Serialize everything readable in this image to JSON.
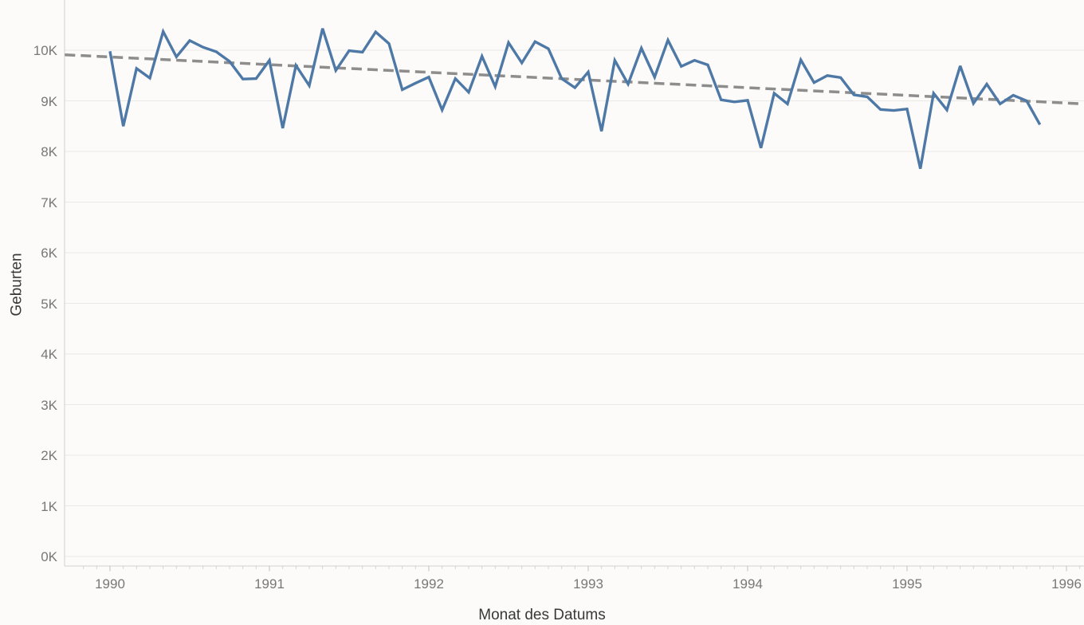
{
  "chart_data": {
    "type": "line",
    "title": "",
    "xlabel": "Monat des Datums",
    "ylabel": "Geburten",
    "x_tick_labels": [
      "1990",
      "1991",
      "1992",
      "1993",
      "1994",
      "1995",
      "1996"
    ],
    "y_tick_labels": [
      "0K",
      "1K",
      "2K",
      "3K",
      "4K",
      "5K",
      "6K",
      "7K",
      "8K",
      "9K",
      "10K"
    ],
    "y_axis": {
      "min": 0,
      "max": 10500,
      "grid_interval_births": 1000
    },
    "x_axis": {
      "start_month": "1990-01",
      "end_month": "1995-11",
      "minor_ticks": "monthly",
      "major_ticks": "yearly"
    },
    "legend": "none",
    "grid": "horizontal-only",
    "series": [
      {
        "name": "Geburten",
        "color": "#4e79a7",
        "start": "1990-01",
        "values": [
          9980,
          8500,
          9640,
          9450,
          10370,
          9870,
          10190,
          10060,
          9970,
          9780,
          9430,
          9440,
          9800,
          8460,
          9700,
          9300,
          10430,
          9600,
          9990,
          9960,
          10360,
          10130,
          9220,
          9350,
          9470,
          8820,
          9440,
          9170,
          9880,
          9280,
          10150,
          9750,
          10170,
          10030,
          9440,
          9260,
          9570,
          8400,
          9800,
          9330,
          10040,
          9470,
          10200,
          9680,
          9800,
          9710,
          9020,
          8980,
          9010,
          8070,
          9150,
          8940,
          9810,
          9360,
          9500,
          9460,
          9120,
          9080,
          8830,
          8810,
          8840,
          7660,
          9150,
          8820,
          9690,
          8950,
          9330,
          8940,
          9110,
          9000,
          8530
        ]
      }
    ],
    "trend_line": {
      "name": "Trend",
      "style": "dashed",
      "color": "#8d8d8d",
      "from": {
        "month_index": -3.4,
        "value": 9910
      },
      "to": {
        "month_index": 73.3,
        "value": 8940
      }
    },
    "colors": {
      "line": "#4e79a7",
      "trend": "#8d8d8d",
      "gridline": "#ebe9e6",
      "axis_ruler": "#d2d0cc",
      "minor_tick": "#d8d6d2",
      "major_tick": "#c2c0bc",
      "tick_label": "#787878",
      "axis_title": "#383838",
      "background": "#fcfbf9"
    }
  }
}
